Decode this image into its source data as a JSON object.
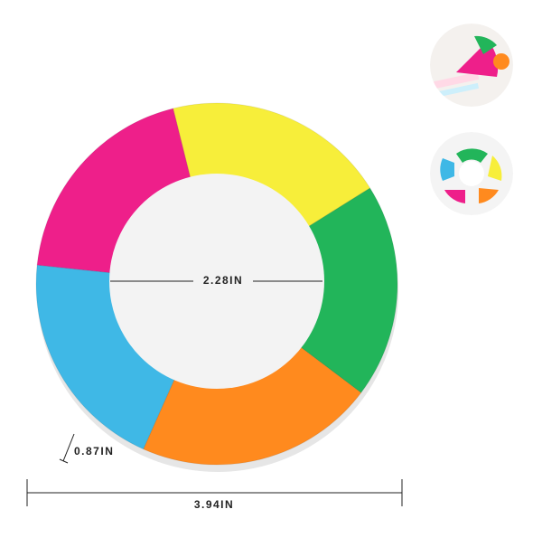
{
  "dimensions": {
    "inner_diameter": "2.28IN",
    "outer_diameter": "3.94IN",
    "thickness": "0.87IN"
  }
}
